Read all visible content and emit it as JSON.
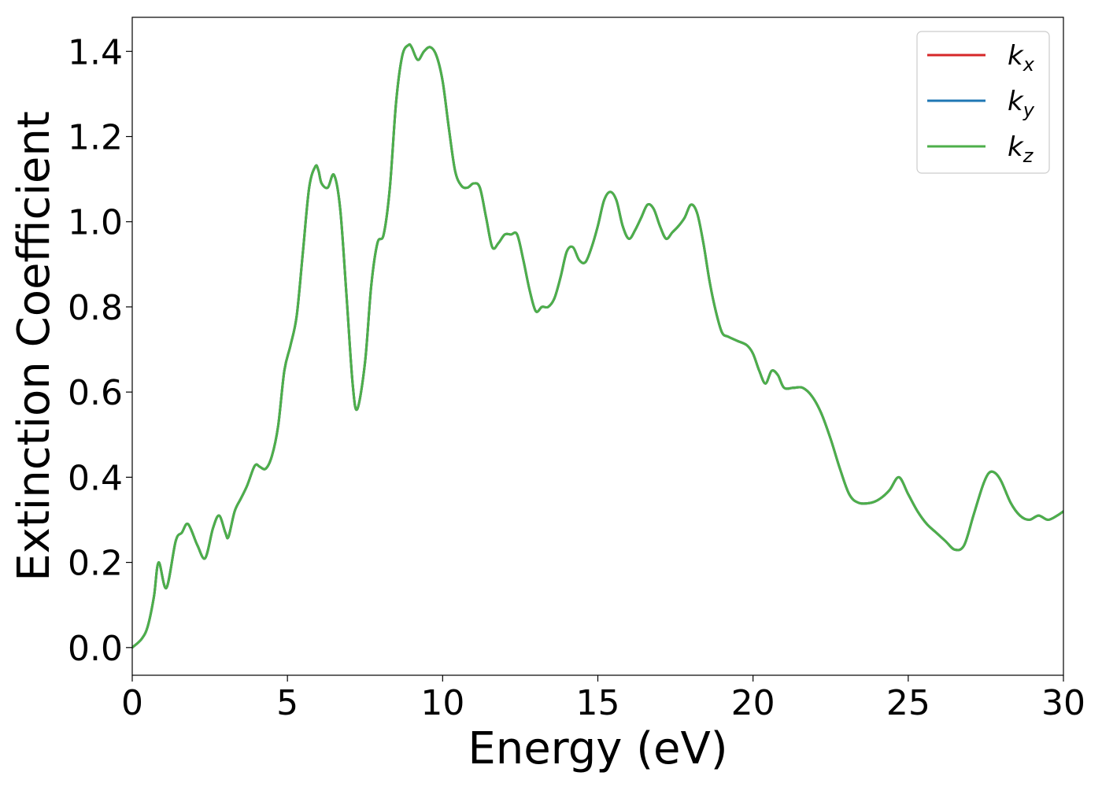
{
  "chart_data": {
    "type": "line",
    "title": "",
    "xlabel": "Energy (eV)",
    "ylabel": "Extinction Coefficient",
    "xlim": [
      0,
      30
    ],
    "ylim": [
      -0.065,
      1.48
    ],
    "xticks": [
      0,
      5,
      10,
      15,
      20,
      25,
      30
    ],
    "xtick_labels": [
      "0",
      "5",
      "10",
      "15",
      "20",
      "25",
      "30"
    ],
    "yticks": [
      0.0,
      0.2,
      0.4,
      0.6,
      0.8,
      1.0,
      1.2,
      1.4
    ],
    "ytick_labels": [
      "0.0",
      "0.2",
      "0.4",
      "0.6",
      "0.8",
      "1.0",
      "1.2",
      "1.4"
    ],
    "grid": false,
    "legend_position": "top-right",
    "x": [
      0,
      0.3,
      0.5,
      0.7,
      0.85,
      1.1,
      1.4,
      1.6,
      1.8,
      2.1,
      2.35,
      2.6,
      2.8,
      3.0,
      3.1,
      3.3,
      3.5,
      3.7,
      3.9,
      4.0,
      4.1,
      4.3,
      4.5,
      4.7,
      4.9,
      5.1,
      5.3,
      5.5,
      5.7,
      5.9,
      6.0,
      6.1,
      6.3,
      6.5,
      6.7,
      6.9,
      7.1,
      7.25,
      7.5,
      7.7,
      7.9,
      8.1,
      8.3,
      8.5,
      8.7,
      8.9,
      9.0,
      9.2,
      9.4,
      9.6,
      9.8,
      10.0,
      10.2,
      10.4,
      10.6,
      10.8,
      11.0,
      11.2,
      11.4,
      11.6,
      11.8,
      12.0,
      12.2,
      12.4,
      12.6,
      12.8,
      13.0,
      13.2,
      13.4,
      13.6,
      13.8,
      14.0,
      14.2,
      14.4,
      14.6,
      14.8,
      15.0,
      15.2,
      15.4,
      15.6,
      15.8,
      16.0,
      16.2,
      16.4,
      16.6,
      16.8,
      17.0,
      17.2,
      17.4,
      17.6,
      17.8,
      18.0,
      18.2,
      18.4,
      18.6,
      18.8,
      19.0,
      19.2,
      19.5,
      19.8,
      20.0,
      20.2,
      20.4,
      20.6,
      20.8,
      21.0,
      21.3,
      21.6,
      21.9,
      22.2,
      22.5,
      22.8,
      23.1,
      23.4,
      23.8,
      24.1,
      24.4,
      24.7,
      25.0,
      25.3,
      25.6,
      25.9,
      26.2,
      26.5,
      26.8,
      27.1,
      27.4,
      27.6,
      27.8,
      28.0,
      28.3,
      28.6,
      28.9,
      29.2,
      29.5,
      29.8,
      30.0
    ],
    "series": [
      {
        "name": "k_x",
        "color": "#d62728",
        "values": [
          0.0,
          0.02,
          0.05,
          0.12,
          0.2,
          0.14,
          0.25,
          0.27,
          0.29,
          0.24,
          0.21,
          0.28,
          0.31,
          0.27,
          0.26,
          0.32,
          0.35,
          0.38,
          0.42,
          0.43,
          0.425,
          0.42,
          0.45,
          0.52,
          0.65,
          0.71,
          0.78,
          0.93,
          1.08,
          1.13,
          1.12,
          1.09,
          1.08,
          1.11,
          1.03,
          0.83,
          0.62,
          0.56,
          0.67,
          0.85,
          0.95,
          0.97,
          1.08,
          1.28,
          1.39,
          1.415,
          1.41,
          1.38,
          1.4,
          1.41,
          1.39,
          1.33,
          1.22,
          1.12,
          1.085,
          1.08,
          1.09,
          1.08,
          1.01,
          0.94,
          0.95,
          0.97,
          0.97,
          0.97,
          0.91,
          0.84,
          0.79,
          0.8,
          0.8,
          0.82,
          0.87,
          0.93,
          0.94,
          0.91,
          0.905,
          0.94,
          0.99,
          1.05,
          1.07,
          1.05,
          0.99,
          0.96,
          0.98,
          1.01,
          1.04,
          1.03,
          0.99,
          0.96,
          0.975,
          0.99,
          1.01,
          1.04,
          1.02,
          0.95,
          0.86,
          0.79,
          0.74,
          0.73,
          0.72,
          0.71,
          0.69,
          0.65,
          0.62,
          0.65,
          0.64,
          0.61,
          0.61,
          0.61,
          0.59,
          0.55,
          0.49,
          0.42,
          0.36,
          0.34,
          0.34,
          0.35,
          0.37,
          0.4,
          0.36,
          0.32,
          0.29,
          0.27,
          0.25,
          0.23,
          0.24,
          0.31,
          0.38,
          0.41,
          0.41,
          0.39,
          0.34,
          0.31,
          0.3,
          0.31,
          0.3,
          0.31,
          0.32
        ]
      },
      {
        "name": "k_y",
        "color": "#1f77b4",
        "values": [
          0.0,
          0.02,
          0.05,
          0.12,
          0.2,
          0.14,
          0.25,
          0.27,
          0.29,
          0.24,
          0.21,
          0.28,
          0.31,
          0.27,
          0.26,
          0.32,
          0.35,
          0.38,
          0.42,
          0.43,
          0.425,
          0.42,
          0.45,
          0.52,
          0.65,
          0.71,
          0.78,
          0.93,
          1.08,
          1.13,
          1.12,
          1.09,
          1.08,
          1.11,
          1.03,
          0.83,
          0.62,
          0.56,
          0.67,
          0.85,
          0.95,
          0.97,
          1.08,
          1.28,
          1.39,
          1.415,
          1.41,
          1.38,
          1.4,
          1.41,
          1.39,
          1.33,
          1.22,
          1.12,
          1.085,
          1.08,
          1.09,
          1.08,
          1.01,
          0.94,
          0.95,
          0.97,
          0.97,
          0.97,
          0.91,
          0.84,
          0.79,
          0.8,
          0.8,
          0.82,
          0.87,
          0.93,
          0.94,
          0.91,
          0.905,
          0.94,
          0.99,
          1.05,
          1.07,
          1.05,
          0.99,
          0.96,
          0.98,
          1.01,
          1.04,
          1.03,
          0.99,
          0.96,
          0.975,
          0.99,
          1.01,
          1.04,
          1.02,
          0.95,
          0.86,
          0.79,
          0.74,
          0.73,
          0.72,
          0.71,
          0.69,
          0.65,
          0.62,
          0.65,
          0.64,
          0.61,
          0.61,
          0.61,
          0.59,
          0.55,
          0.49,
          0.42,
          0.36,
          0.34,
          0.34,
          0.35,
          0.37,
          0.4,
          0.36,
          0.32,
          0.29,
          0.27,
          0.25,
          0.23,
          0.24,
          0.31,
          0.38,
          0.41,
          0.41,
          0.39,
          0.34,
          0.31,
          0.3,
          0.31,
          0.3,
          0.31,
          0.32
        ]
      },
      {
        "name": "k_z",
        "color": "#4daf4a",
        "values": [
          0.0,
          0.02,
          0.05,
          0.12,
          0.2,
          0.14,
          0.25,
          0.27,
          0.29,
          0.24,
          0.21,
          0.28,
          0.31,
          0.27,
          0.26,
          0.32,
          0.35,
          0.38,
          0.42,
          0.43,
          0.425,
          0.42,
          0.45,
          0.52,
          0.65,
          0.71,
          0.78,
          0.93,
          1.08,
          1.13,
          1.12,
          1.09,
          1.08,
          1.11,
          1.03,
          0.83,
          0.62,
          0.56,
          0.67,
          0.85,
          0.95,
          0.97,
          1.08,
          1.28,
          1.39,
          1.415,
          1.41,
          1.38,
          1.4,
          1.41,
          1.39,
          1.33,
          1.22,
          1.12,
          1.085,
          1.08,
          1.09,
          1.08,
          1.01,
          0.94,
          0.95,
          0.97,
          0.97,
          0.97,
          0.91,
          0.84,
          0.79,
          0.8,
          0.8,
          0.82,
          0.87,
          0.93,
          0.94,
          0.91,
          0.905,
          0.94,
          0.99,
          1.05,
          1.07,
          1.05,
          0.99,
          0.96,
          0.98,
          1.01,
          1.04,
          1.03,
          0.99,
          0.96,
          0.975,
          0.99,
          1.01,
          1.04,
          1.02,
          0.95,
          0.86,
          0.79,
          0.74,
          0.73,
          0.72,
          0.71,
          0.69,
          0.65,
          0.62,
          0.65,
          0.64,
          0.61,
          0.61,
          0.61,
          0.59,
          0.55,
          0.49,
          0.42,
          0.36,
          0.34,
          0.34,
          0.35,
          0.37,
          0.4,
          0.36,
          0.32,
          0.29,
          0.27,
          0.25,
          0.23,
          0.24,
          0.31,
          0.38,
          0.41,
          0.41,
          0.39,
          0.34,
          0.31,
          0.3,
          0.31,
          0.3,
          0.31,
          0.32
        ]
      }
    ],
    "legend": [
      {
        "base": "k",
        "sub": "x",
        "color": "#d62728"
      },
      {
        "base": "k",
        "sub": "y",
        "color": "#1f77b4"
      },
      {
        "base": "k",
        "sub": "z",
        "color": "#4daf4a"
      }
    ]
  }
}
